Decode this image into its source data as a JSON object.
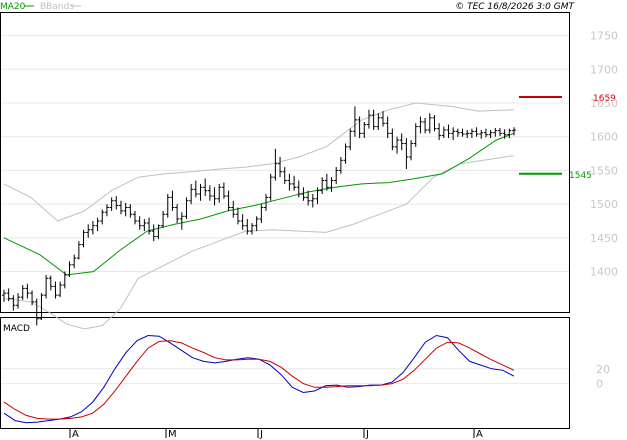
{
  "header": {
    "legend_ma": "MA20",
    "legend_bbands": "BBands",
    "copyright": "© TEC 16/8/2026 3:0 GMT"
  },
  "colors": {
    "ma": "#009900",
    "bbands": "#c0c0c0",
    "bars": "#000000",
    "resistance": "#cc0000",
    "support": "#009900",
    "macd_line": "#0000cc",
    "signal_line": "#cc0000",
    "axis_text": "#c8c8c8",
    "grid": "#e8e8e8"
  },
  "chart_data": [
    {
      "type": "ohlc",
      "name": "price",
      "ylim": [
        1340,
        1785
      ],
      "y_ticks": [
        "1750",
        "1700",
        "1650",
        "1600",
        "1550",
        "1500",
        "1450",
        "1400"
      ],
      "x_months": [
        "A",
        "M",
        "J",
        "J",
        "A"
      ],
      "bar_count": 110,
      "bars": [
        [
          1365,
          1373,
          1355,
          1368
        ],
        [
          1368,
          1375,
          1356,
          1360
        ],
        [
          1360,
          1365,
          1342,
          1350
        ],
        [
          1350,
          1368,
          1345,
          1362
        ],
        [
          1362,
          1380,
          1358,
          1375
        ],
        [
          1375,
          1382,
          1360,
          1368
        ],
        [
          1368,
          1372,
          1350,
          1355
        ],
        [
          1355,
          1360,
          1320,
          1330
        ],
        [
          1330,
          1368,
          1328,
          1365
        ],
        [
          1365,
          1395,
          1360,
          1390
        ],
        [
          1390,
          1394,
          1372,
          1378
        ],
        [
          1378,
          1385,
          1360,
          1365
        ],
        [
          1365,
          1385,
          1362,
          1380
        ],
        [
          1380,
          1400,
          1375,
          1395
        ],
        [
          1395,
          1415,
          1392,
          1410
        ],
        [
          1410,
          1425,
          1405,
          1420
        ],
        [
          1420,
          1445,
          1418,
          1440
        ],
        [
          1440,
          1462,
          1436,
          1458
        ],
        [
          1458,
          1470,
          1450,
          1462
        ],
        [
          1462,
          1475,
          1455,
          1468
        ],
        [
          1468,
          1480,
          1460,
          1475
        ],
        [
          1475,
          1492,
          1470,
          1488
        ],
        [
          1488,
          1500,
          1482,
          1495
        ],
        [
          1495,
          1510,
          1490,
          1505
        ],
        [
          1505,
          1512,
          1492,
          1498
        ],
        [
          1498,
          1505,
          1485,
          1490
        ],
        [
          1490,
          1502,
          1482,
          1495
        ],
        [
          1495,
          1500,
          1480,
          1485
        ],
        [
          1485,
          1490,
          1470,
          1475
        ],
        [
          1475,
          1482,
          1462,
          1468
        ],
        [
          1468,
          1478,
          1460,
          1472
        ],
        [
          1472,
          1480,
          1455,
          1460
        ],
        [
          1460,
          1470,
          1445,
          1452
        ],
        [
          1452,
          1470,
          1448,
          1468
        ],
        [
          1468,
          1490,
          1465,
          1485
        ],
        [
          1485,
          1515,
          1480,
          1510
        ],
        [
          1510,
          1520,
          1490,
          1495
        ],
        [
          1495,
          1500,
          1472,
          1478
        ],
        [
          1478,
          1488,
          1462,
          1482
        ],
        [
          1482,
          1510,
          1478,
          1505
        ],
        [
          1505,
          1530,
          1500,
          1522
        ],
        [
          1522,
          1535,
          1510,
          1515
        ],
        [
          1515,
          1530,
          1505,
          1525
        ],
        [
          1525,
          1538,
          1512,
          1520
        ],
        [
          1520,
          1528,
          1505,
          1512
        ],
        [
          1512,
          1525,
          1498,
          1508
        ],
        [
          1508,
          1530,
          1502,
          1525
        ],
        [
          1525,
          1532,
          1508,
          1512
        ],
        [
          1512,
          1520,
          1490,
          1495
        ],
        [
          1495,
          1505,
          1480,
          1485
        ],
        [
          1485,
          1495,
          1470,
          1475
        ],
        [
          1475,
          1485,
          1462,
          1468
        ],
        [
          1468,
          1478,
          1455,
          1460
        ],
        [
          1460,
          1472,
          1455,
          1468
        ],
        [
          1468,
          1482,
          1460,
          1478
        ],
        [
          1478,
          1500,
          1472,
          1495
        ],
        [
          1495,
          1515,
          1490,
          1510
        ],
        [
          1510,
          1545,
          1505,
          1540
        ],
        [
          1540,
          1582,
          1535,
          1560
        ],
        [
          1560,
          1570,
          1540,
          1548
        ],
        [
          1548,
          1555,
          1530,
          1535
        ],
        [
          1535,
          1545,
          1520,
          1530
        ],
        [
          1530,
          1542,
          1520,
          1525
        ],
        [
          1525,
          1535,
          1510,
          1515
        ],
        [
          1515,
          1525,
          1505,
          1510
        ],
        [
          1510,
          1520,
          1498,
          1505
        ],
        [
          1505,
          1515,
          1495,
          1508
        ],
        [
          1508,
          1525,
          1500,
          1520
        ],
        [
          1520,
          1540,
          1515,
          1535
        ],
        [
          1535,
          1545,
          1520,
          1525
        ],
        [
          1525,
          1540,
          1518,
          1535
        ],
        [
          1535,
          1555,
          1530,
          1550
        ],
        [
          1550,
          1570,
          1545,
          1565
        ],
        [
          1565,
          1590,
          1560,
          1585
        ],
        [
          1585,
          1612,
          1580,
          1608
        ],
        [
          1608,
          1645,
          1600,
          1625
        ],
        [
          1625,
          1630,
          1598,
          1605
        ],
        [
          1605,
          1622,
          1598,
          1618
        ],
        [
          1618,
          1640,
          1612,
          1632
        ],
        [
          1632,
          1640,
          1610,
          1615
        ],
        [
          1615,
          1635,
          1610,
          1628
        ],
        [
          1628,
          1638,
          1615,
          1620
        ],
        [
          1620,
          1630,
          1598,
          1605
        ],
        [
          1605,
          1612,
          1580,
          1585
        ],
        [
          1585,
          1600,
          1575,
          1595
        ],
        [
          1595,
          1605,
          1580,
          1590
        ],
        [
          1590,
          1598,
          1552,
          1570
        ],
        [
          1570,
          1595,
          1565,
          1590
        ],
        [
          1590,
          1620,
          1585,
          1615
        ],
        [
          1615,
          1630,
          1605,
          1622
        ],
        [
          1622,
          1628,
          1605,
          1610
        ],
        [
          1610,
          1635,
          1605,
          1628
        ],
        [
          1628,
          1632,
          1608,
          1612
        ],
        [
          1612,
          1620,
          1595,
          1602
        ],
        [
          1602,
          1615,
          1598,
          1610
        ],
        [
          1610,
          1618,
          1598,
          1605
        ],
        [
          1605,
          1614,
          1595,
          1608
        ],
        [
          1608,
          1612,
          1600,
          1606
        ],
        [
          1606,
          1612,
          1600,
          1604
        ],
        [
          1604,
          1610,
          1598,
          1605
        ],
        [
          1605,
          1612,
          1598,
          1608
        ],
        [
          1608,
          1614,
          1600,
          1604
        ],
        [
          1604,
          1610,
          1597,
          1606
        ],
        [
          1606,
          1612,
          1599,
          1603
        ],
        [
          1603,
          1610,
          1598,
          1606
        ],
        [
          1606,
          1613,
          1600,
          1609
        ],
        [
          1609,
          1613,
          1601,
          1605
        ],
        [
          1605,
          1611,
          1597,
          1603
        ],
        [
          1603,
          1612,
          1598,
          1609
        ],
        [
          1609,
          1614,
          1602,
          1610
        ]
      ],
      "ma20": [
        [
          0,
          1450
        ],
        [
          8,
          1425
        ],
        [
          14,
          1395
        ],
        [
          20,
          1400
        ],
        [
          26,
          1432
        ],
        [
          32,
          1460
        ],
        [
          38,
          1470
        ],
        [
          44,
          1478
        ],
        [
          50,
          1490
        ],
        [
          56,
          1498
        ],
        [
          62,
          1508
        ],
        [
          68,
          1518
        ],
        [
          74,
          1525
        ],
        [
          80,
          1530
        ],
        [
          86,
          1532
        ],
        [
          92,
          1538
        ],
        [
          98,
          1545
        ],
        [
          104,
          1568
        ],
        [
          110,
          1595
        ],
        [
          114,
          1605
        ]
      ],
      "bb_upper": [
        [
          0,
          1530
        ],
        [
          6,
          1510
        ],
        [
          12,
          1475
        ],
        [
          18,
          1490
        ],
        [
          24,
          1520
        ],
        [
          30,
          1540
        ],
        [
          36,
          1545
        ],
        [
          42,
          1548
        ],
        [
          48,
          1552
        ],
        [
          54,
          1555
        ],
        [
          60,
          1560
        ],
        [
          66,
          1570
        ],
        [
          72,
          1585
        ],
        [
          76,
          1605
        ],
        [
          80,
          1625
        ],
        [
          86,
          1640
        ],
        [
          92,
          1650
        ],
        [
          100,
          1645
        ],
        [
          106,
          1638
        ],
        [
          114,
          1640
        ]
      ],
      "bb_lower": [
        [
          0,
          1360
        ],
        [
          6,
          1355
        ],
        [
          10,
          1340
        ],
        [
          14,
          1322
        ],
        [
          18,
          1315
        ],
        [
          22,
          1320
        ],
        [
          26,
          1345
        ],
        [
          30,
          1390
        ],
        [
          36,
          1410
        ],
        [
          42,
          1430
        ],
        [
          48,
          1445
        ],
        [
          54,
          1460
        ],
        [
          60,
          1462
        ],
        [
          66,
          1460
        ],
        [
          72,
          1458
        ],
        [
          78,
          1470
        ],
        [
          84,
          1485
        ],
        [
          90,
          1500
        ],
        [
          96,
          1540
        ],
        [
          102,
          1560
        ],
        [
          114,
          1572
        ]
      ],
      "resistance": {
        "value": 1659,
        "label": "1659"
      },
      "support": {
        "value": 1545,
        "label": "1545"
      }
    },
    {
      "type": "line",
      "name": "MACD",
      "title": "MACD",
      "ylim": [
        -60,
        90
      ],
      "y_ticks": [
        "20",
        "0"
      ],
      "series": [
        {
          "role": "macd",
          "values": [
            -40,
            -50,
            -53,
            -52,
            -50,
            -48,
            -45,
            -38,
            -25,
            -5,
            20,
            42,
            58,
            65,
            64,
            55,
            45,
            35,
            30,
            28,
            30,
            33,
            35,
            33,
            25,
            12,
            -5,
            -12,
            -10,
            -3,
            -2,
            -5,
            -4,
            -2,
            -2,
            2,
            15,
            35,
            56,
            65,
            62,
            45,
            30,
            25,
            20,
            18,
            10
          ]
        },
        {
          "role": "signal",
          "values": [
            -25,
            -35,
            -43,
            -47,
            -48,
            -48,
            -47,
            -45,
            -40,
            -28,
            -10,
            10,
            30,
            48,
            57,
            58,
            55,
            48,
            42,
            35,
            32,
            32,
            33,
            33,
            30,
            22,
            10,
            0,
            -5,
            -5,
            -4,
            -3,
            -3,
            -3,
            -2,
            0,
            6,
            18,
            33,
            48,
            56,
            55,
            48,
            40,
            32,
            25,
            18
          ]
        }
      ]
    }
  ]
}
